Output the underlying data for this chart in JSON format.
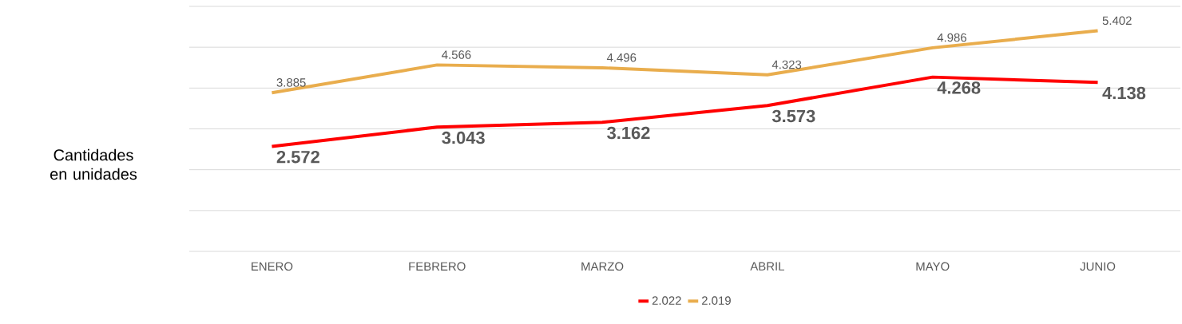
{
  "chart_data": {
    "type": "line",
    "ylabel": "Cantidades en unidades",
    "categories": [
      "ENERO",
      "FEBRERO",
      "MARZO",
      "ABRIL",
      "MAYO",
      "JUNIO"
    ],
    "series": [
      {
        "name": "2.022",
        "color": "#ff0000",
        "values": [
          2.572,
          3.043,
          3.162,
          3.573,
          4.268,
          4.138
        ]
      },
      {
        "name": "2.019",
        "color": "#e9ad4d",
        "values": [
          3.885,
          4.566,
          4.496,
          4.323,
          4.986,
          5.402
        ]
      }
    ],
    "ylim": [
      0,
      6
    ],
    "yticks": [
      {
        "value": 0,
        "label": null
      },
      {
        "value": 1,
        "label": null
      },
      {
        "value": 2,
        "label": null
      },
      {
        "value": 3,
        "label": null
      },
      {
        "value": 4,
        "label": null
      },
      {
        "value": 5,
        "label": null
      },
      {
        "value": 6,
        "label": null
      }
    ],
    "tick_labels": "x",
    "grid": "y",
    "data_labels": true,
    "legend": "bottom",
    "marker": "none",
    "line_style": "solid"
  }
}
